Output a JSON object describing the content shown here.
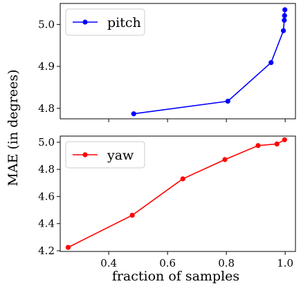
{
  "chart_data": [
    {
      "type": "line",
      "x": [
        0.485,
        0.805,
        0.952,
        0.994,
        0.997,
        0.998,
        0.999
      ],
      "series": [
        {
          "name": "pitch",
          "color": "#0000ff",
          "values": [
            4.787,
            4.817,
            4.909,
            4.985,
            5.01,
            5.021,
            5.035
          ]
        }
      ],
      "xlim": [
        0.235,
        1.035
      ],
      "ylim": [
        4.775,
        5.05
      ],
      "xticks": [
        0.4,
        0.6,
        0.8,
        1.0
      ],
      "yticks": [
        4.8,
        4.9,
        5.0
      ],
      "ytick_labels": [
        "4.8",
        "4.9",
        "5.0"
      ],
      "xtick_labels_shown": false,
      "legend_position": "top-left",
      "grid": false
    },
    {
      "type": "line",
      "x": [
        0.262,
        0.48,
        0.652,
        0.795,
        0.908,
        0.972,
        0.998
      ],
      "series": [
        {
          "name": "yaw",
          "color": "#ff0000",
          "values": [
            4.225,
            4.462,
            4.73,
            4.872,
            4.975,
            4.987,
            5.018
          ]
        }
      ],
      "xlim": [
        0.235,
        1.035
      ],
      "ylim": [
        4.195,
        5.045
      ],
      "xticks": [
        0.4,
        0.6,
        0.8,
        1.0
      ],
      "xtick_labels": [
        "0.4",
        "0.6",
        "0.8",
        "1.0"
      ],
      "yticks": [
        4.2,
        4.4,
        4.6,
        4.8,
        5.0
      ],
      "ytick_labels": [
        "4.2",
        "4.4",
        "4.6",
        "4.8",
        "5.0"
      ],
      "legend_position": "top-left",
      "grid": false
    }
  ],
  "labels": {
    "xlabel": "fraction of samples",
    "ylabel": "MAE (in degrees)"
  }
}
